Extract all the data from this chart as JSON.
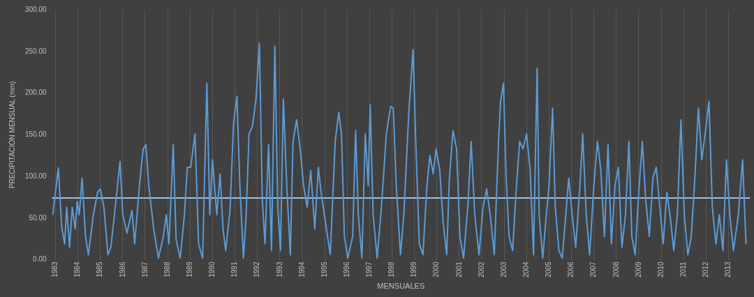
{
  "chart_data": {
    "type": "line",
    "xlabel": "MENSUALES",
    "ylabel": "PRECIPITACIÓN MENSUAL (mm)",
    "xlim": [
      1982.85,
      2013.95
    ],
    "xticks": [
      1983,
      1984,
      1985,
      1986,
      1987,
      1988,
      1989,
      1990,
      1991,
      1992,
      1993,
      1994,
      1995,
      1996,
      1997,
      1998,
      1999,
      2000,
      2001,
      2002,
      2003,
      2004,
      2005,
      2006,
      2007,
      2008,
      2009,
      2010,
      2011,
      2012,
      2013
    ],
    "ylim": [
      0,
      300
    ],
    "yticks": [
      {
        "value": 0,
        "label": "0.00"
      },
      {
        "value": 50,
        "label": "50.00"
      },
      {
        "value": 100,
        "label": "100.00"
      },
      {
        "value": 150,
        "label": "150.00"
      },
      {
        "value": 200,
        "label": "200.00"
      },
      {
        "value": 250,
        "label": "250.00"
      },
      {
        "value": 300,
        "label": "300.00"
      }
    ],
    "grid": "x",
    "marker": "none",
    "line_style": "solid",
    "ref_lines": [
      {
        "axis": "y",
        "value": 74,
        "label": null,
        "color": "#9dc3e6"
      }
    ],
    "series": [
      {
        "color": "#5b9bd5",
        "x": [
          1982.88,
          1983.13,
          1983.28,
          1983.41,
          1983.5,
          1983.63,
          1983.75,
          1983.88,
          1983.97,
          1984.06,
          1984.19,
          1984.34,
          1984.47,
          1984.69,
          1984.88,
          1985.0,
          1985.16,
          1985.34,
          1985.47,
          1985.63,
          1985.88,
          1986.0,
          1986.19,
          1986.41,
          1986.53,
          1986.75,
          1986.91,
          1987.03,
          1987.16,
          1987.38,
          1987.59,
          1987.81,
          1987.94,
          1988.06,
          1988.25,
          1988.38,
          1988.56,
          1988.75,
          1988.88,
          1989.03,
          1989.22,
          1989.38,
          1989.56,
          1989.75,
          1989.88,
          1990.0,
          1990.19,
          1990.34,
          1990.47,
          1990.59,
          1990.78,
          1990.94,
          1991.09,
          1991.22,
          1991.38,
          1991.5,
          1991.63,
          1991.78,
          1991.94,
          1992.09,
          1992.22,
          1992.34,
          1992.5,
          1992.63,
          1992.78,
          1992.91,
          1993.03,
          1993.16,
          1993.31,
          1993.47,
          1993.59,
          1993.75,
          1993.91,
          1994.06,
          1994.22,
          1994.38,
          1994.56,
          1994.72,
          1994.84,
          1995.03,
          1995.25,
          1995.47,
          1995.63,
          1995.75,
          1995.88,
          1996.03,
          1996.25,
          1996.38,
          1996.5,
          1996.66,
          1996.81,
          1996.94,
          1997.03,
          1997.16,
          1997.34,
          1997.53,
          1997.75,
          1997.94,
          1998.06,
          1998.19,
          1998.38,
          1998.53,
          1998.75,
          1998.94,
          1999.06,
          1999.22,
          1999.38,
          1999.56,
          1999.69,
          1999.84,
          1999.97,
          2000.13,
          2000.28,
          2000.44,
          2000.56,
          2000.72,
          2000.88,
          2001.03,
          2001.19,
          2001.38,
          2001.53,
          2001.69,
          2001.88,
          2002.06,
          2002.22,
          2002.38,
          2002.56,
          2002.75,
          2002.84,
          2002.97,
          2003.09,
          2003.22,
          2003.38,
          2003.53,
          2003.69,
          2003.84,
          2004.0,
          2004.16,
          2004.31,
          2004.47,
          2004.56,
          2004.72,
          2004.88,
          2005.0,
          2005.16,
          2005.28,
          2005.44,
          2005.59,
          2005.75,
          2005.88,
          2006.03,
          2006.19,
          2006.38,
          2006.5,
          2006.66,
          2006.81,
          2007.0,
          2007.16,
          2007.31,
          2007.47,
          2007.63,
          2007.78,
          2007.94,
          2008.09,
          2008.25,
          2008.41,
          2008.56,
          2008.69,
          2008.84,
          2009.0,
          2009.16,
          2009.31,
          2009.47,
          2009.63,
          2009.78,
          2009.94,
          2010.09,
          2010.25,
          2010.41,
          2010.56,
          2010.72,
          2010.88,
          2011.03,
          2011.19,
          2011.34,
          2011.5,
          2011.66,
          2011.81,
          2012.0,
          2012.13,
          2012.28,
          2012.44,
          2012.59,
          2012.75,
          2012.91,
          2013.06,
          2013.22,
          2013.44,
          2013.63,
          2013.78
        ],
        "values": [
          54,
          110,
          39,
          19,
          63,
          15,
          63,
          37,
          70,
          54,
          98,
          28,
          6,
          54,
          81,
          85,
          63,
          6,
          15,
          54,
          118,
          54,
          32,
          59,
          19,
          91,
          133,
          138,
          89,
          37,
          2,
          28,
          54,
          19,
          138,
          24,
          2,
          54,
          111,
          111,
          151,
          19,
          2,
          212,
          54,
          120,
          54,
          103,
          37,
          11,
          59,
          164,
          196,
          89,
          2,
          54,
          151,
          160,
          193,
          260,
          72,
          19,
          138,
          11,
          256,
          63,
          11,
          193,
          89,
          6,
          142,
          168,
          133,
          89,
          63,
          107,
          37,
          111,
          81,
          46,
          6,
          142,
          177,
          151,
          28,
          2,
          28,
          155,
          54,
          2,
          151,
          89,
          186,
          54,
          2,
          63,
          151,
          184,
          182,
          89,
          6,
          54,
          177,
          252,
          142,
          19,
          6,
          89,
          125,
          103,
          133,
          107,
          46,
          6,
          98,
          155,
          133,
          28,
          2,
          63,
          142,
          54,
          6,
          63,
          85,
          54,
          6,
          142,
          190,
          212,
          98,
          28,
          11,
          81,
          142,
          133,
          151,
          107,
          6,
          230,
          54,
          2,
          54,
          89,
          182,
          63,
          11,
          2,
          54,
          98,
          54,
          15,
          89,
          151,
          54,
          6,
          89,
          142,
          107,
          28,
          138,
          19,
          89,
          111,
          15,
          54,
          142,
          28,
          6,
          81,
          142,
          72,
          28,
          98,
          111,
          63,
          19,
          81,
          50,
          11,
          54,
          168,
          54,
          6,
          28,
          98,
          182,
          120,
          160,
          190,
          63,
          19,
          54,
          11,
          120,
          54,
          11,
          54,
          120,
          19
        ]
      }
    ]
  }
}
